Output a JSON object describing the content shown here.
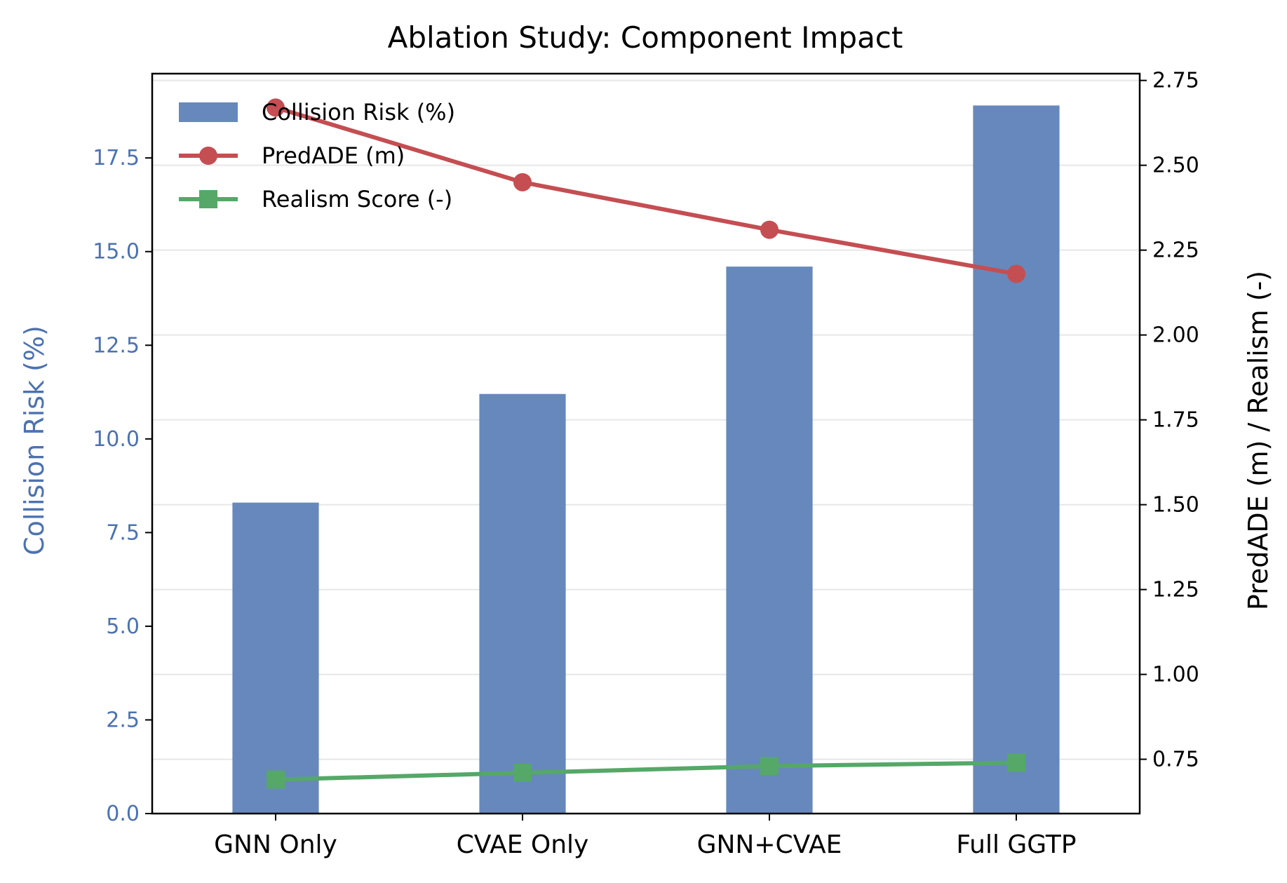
{
  "chart_data": {
    "type": "bar",
    "title": "Ablation Study: Component Impact",
    "categories": [
      "GNN Only",
      "CVAE Only",
      "GNN+CVAE",
      "Full GGTP"
    ],
    "left_axis": {
      "label": "Collision Risk (%)",
      "ylim": [
        0,
        19.75
      ],
      "ticks": [
        0.0,
        2.5,
        5.0,
        7.5,
        10.0,
        12.5,
        15.0,
        17.5
      ],
      "tick_labels": [
        "0.0",
        "2.5",
        "5.0",
        "7.5",
        "10.0",
        "12.5",
        "15.0",
        "17.5"
      ],
      "color": "#4c72b0"
    },
    "right_axis": {
      "label": "PredADE (m) / Realism (-)",
      "ylim": [
        0.59,
        2.77
      ],
      "ticks": [
        0.75,
        1.0,
        1.25,
        1.5,
        1.75,
        2.0,
        2.25,
        2.5,
        2.75
      ],
      "tick_labels": [
        "0.75",
        "1.00",
        "1.25",
        "1.50",
        "1.75",
        "2.00",
        "2.25",
        "2.50",
        "2.75"
      ],
      "color": "#000000"
    },
    "series": [
      {
        "name": "Collision Risk (%)",
        "kind": "bar",
        "axis": "left",
        "color": "#6788bc",
        "values": [
          8.3,
          11.2,
          14.6,
          18.9
        ]
      },
      {
        "name": "PredADE (m)",
        "kind": "line",
        "marker": "circle",
        "axis": "right",
        "color": "#c44e52",
        "values": [
          2.67,
          2.45,
          2.31,
          2.18
        ]
      },
      {
        "name": "Realism Score (-)",
        "kind": "line",
        "marker": "square",
        "axis": "right",
        "color": "#55a868",
        "values": [
          0.69,
          0.71,
          0.73,
          0.74
        ]
      }
    ],
    "grid": "horizontal",
    "legend_position": "top-left"
  }
}
